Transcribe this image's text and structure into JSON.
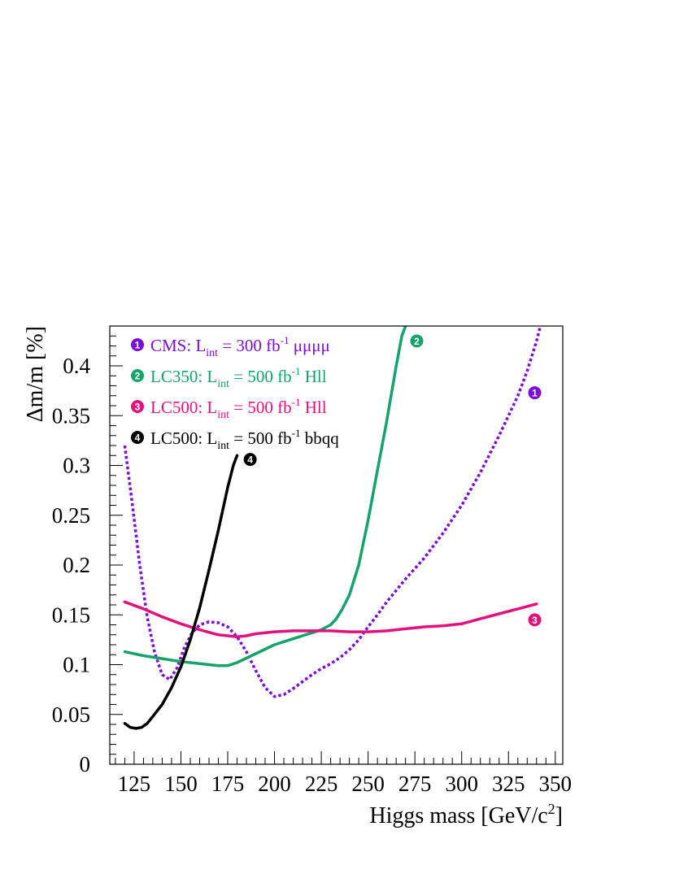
{
  "chart_data": {
    "type": "line",
    "xlabel": "Higgs mass [GeV/c",
    "xlabel_sup": "2",
    "xlabel_end": "]",
    "ylabel": "Δm/m [%]",
    "xlim": [
      112,
      354
    ],
    "ylim": [
      0,
      0.44
    ],
    "xticks": [
      "125",
      "150",
      "175",
      "200",
      "225",
      "250",
      "275",
      "300",
      "325",
      "350"
    ],
    "yticks": [
      "0",
      "0.05",
      "0.1",
      "0.15",
      "0.2",
      "0.25",
      "0.3",
      "0.35",
      "0.4"
    ],
    "grid": false,
    "legend_position": "top-left",
    "series": [
      {
        "marker": "1",
        "legend_prefix": "CMS: L",
        "legend_sub": "int",
        "legend_mid": " = 300 fb",
        "legend_sup": "-1",
        "legend_suffix": " μμμμ",
        "color": "#7b0fd4",
        "style": "dotted",
        "label_at": [
          339,
          0.373
        ],
        "x": [
          120,
          124,
          128,
          132,
          136,
          140,
          144,
          148,
          152,
          156,
          160,
          165,
          170,
          175,
          180,
          185,
          190,
          195,
          200,
          205,
          210,
          215,
          220,
          225,
          230,
          235,
          240,
          245,
          250,
          255,
          260,
          270,
          280,
          290,
          300,
          310,
          320,
          330,
          335,
          340,
          342
        ],
        "y": [
          0.32,
          0.262,
          0.2,
          0.148,
          0.112,
          0.09,
          0.085,
          0.097,
          0.118,
          0.132,
          0.14,
          0.143,
          0.142,
          0.138,
          0.128,
          0.113,
          0.094,
          0.077,
          0.068,
          0.07,
          0.076,
          0.083,
          0.09,
          0.096,
          0.101,
          0.107,
          0.115,
          0.125,
          0.138,
          0.15,
          0.163,
          0.186,
          0.207,
          0.232,
          0.26,
          0.293,
          0.33,
          0.37,
          0.395,
          0.425,
          0.44
        ]
      },
      {
        "marker": "2",
        "legend_prefix": "LC350: L",
        "legend_sub": "int",
        "legend_mid": " = 500 fb",
        "legend_sup": "-1",
        "legend_suffix": " Hll",
        "color": "#15a36b",
        "style": "solid",
        "label_at": [
          276,
          0.425
        ],
        "x": [
          120,
          130,
          140,
          150,
          160,
          170,
          175,
          180,
          190,
          200,
          210,
          220,
          225,
          230,
          233,
          236,
          240,
          245,
          250,
          255,
          260,
          265,
          268,
          270
        ],
        "y": [
          0.113,
          0.109,
          0.106,
          0.103,
          0.101,
          0.099,
          0.099,
          0.102,
          0.111,
          0.12,
          0.126,
          0.132,
          0.135,
          0.14,
          0.146,
          0.155,
          0.17,
          0.2,
          0.245,
          0.295,
          0.345,
          0.4,
          0.43,
          0.44
        ]
      },
      {
        "marker": "3",
        "legend_prefix": "LC500: L",
        "legend_sub": "int",
        "legend_mid": " = 500 fb",
        "legend_sup": "-1",
        "legend_suffix": " Hll",
        "color": "#e0137d",
        "style": "solid",
        "label_at": [
          339,
          0.145
        ],
        "x": [
          120,
          130,
          140,
          150,
          160,
          170,
          180,
          185,
          190,
          200,
          210,
          220,
          230,
          240,
          250,
          260,
          270,
          280,
          290,
          300,
          310,
          320,
          330,
          340
        ],
        "y": [
          0.163,
          0.156,
          0.148,
          0.141,
          0.135,
          0.13,
          0.128,
          0.129,
          0.131,
          0.133,
          0.134,
          0.134,
          0.134,
          0.133,
          0.133,
          0.134,
          0.136,
          0.138,
          0.139,
          0.141,
          0.146,
          0.151,
          0.156,
          0.161
        ]
      },
      {
        "marker": "4",
        "legend_prefix": "LC500: L",
        "legend_sub": "int",
        "legend_mid": " = 500 fb",
        "legend_sup": "-1",
        "legend_suffix": " bbqq",
        "color": "#000000",
        "style": "solid",
        "label_at": [
          187,
          0.306
        ],
        "x": [
          120,
          123,
          126,
          129,
          132,
          135,
          140,
          145,
          150,
          155,
          160,
          165,
          170,
          175,
          178,
          180
        ],
        "y": [
          0.041,
          0.037,
          0.036,
          0.037,
          0.041,
          0.048,
          0.06,
          0.077,
          0.098,
          0.125,
          0.157,
          0.195,
          0.235,
          0.278,
          0.3,
          0.31
        ]
      }
    ]
  }
}
